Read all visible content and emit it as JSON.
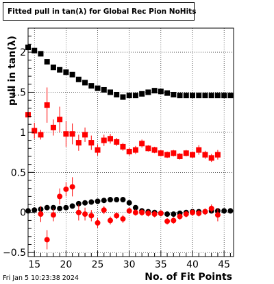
{
  "header": {
    "title": "Fitted pull in tan(λ) for Global Rec Pion NoHits"
  },
  "footer": {
    "timestamp": "Fri Jan  5 10:23:38 2024"
  },
  "chart_data": {
    "type": "scatter",
    "title": "Fitted pull in tan(λ) for Global Rec Pion NoHits",
    "xlabel": "No. of Fit Points",
    "ylabel": "pull in tan(λ)",
    "xlim": [
      14,
      46.5
    ],
    "ylim": [
      -0.55,
      2.3
    ],
    "x_ticks": [
      15,
      20,
      25,
      30,
      35,
      40,
      45
    ],
    "y_ticks": [
      -0.5,
      0,
      0.5,
      1,
      1.5,
      2
    ],
    "y_tick_labels": [
      "−0.5",
      "0",
      "0.5",
      "1",
      "1.5",
      "2"
    ],
    "grid": true,
    "colors": {
      "black": "#000000",
      "red": "#ff0000"
    },
    "series": [
      {
        "color": "#000000",
        "marker": "square",
        "x": [
          14,
          15,
          16,
          17,
          18,
          19,
          20,
          21,
          22,
          23,
          24,
          25,
          26,
          27,
          28,
          29,
          30,
          31,
          32,
          33,
          34,
          35,
          36,
          37,
          38,
          39,
          40,
          41,
          42,
          43,
          44,
          45,
          46
        ],
        "y": [
          2.06,
          2.02,
          1.98,
          1.88,
          1.81,
          1.78,
          1.75,
          1.72,
          1.66,
          1.62,
          1.58,
          1.55,
          1.53,
          1.5,
          1.47,
          1.44,
          1.46,
          1.46,
          1.48,
          1.5,
          1.52,
          1.51,
          1.49,
          1.47,
          1.46,
          1.46,
          1.46,
          1.46,
          1.46,
          1.46,
          1.46,
          1.46,
          1.46
        ]
      },
      {
        "color": "#ff0000",
        "marker": "square",
        "x": [
          14,
          15,
          16,
          17,
          18,
          19,
          20,
          21,
          22,
          23,
          24,
          25,
          26,
          27,
          28,
          29,
          30,
          31,
          32,
          33,
          34,
          35,
          36,
          37,
          38,
          39,
          40,
          41,
          42,
          43,
          44
        ],
        "y": [
          1.22,
          1.02,
          0.97,
          1.34,
          1.06,
          1.16,
          0.98,
          0.98,
          0.87,
          0.97,
          0.87,
          0.78,
          0.9,
          0.92,
          0.88,
          0.82,
          0.76,
          0.78,
          0.86,
          0.8,
          0.78,
          0.74,
          0.72,
          0.74,
          0.7,
          0.74,
          0.72,
          0.78,
          0.72,
          0.68,
          0.72
        ],
        "err": [
          1.1,
          0.1,
          0.06,
          0.22,
          0.1,
          0.16,
          0.16,
          0.13,
          0.1,
          0.09,
          0.09,
          0.07,
          0.07,
          0.06,
          0.05,
          0.05,
          0.05,
          0.05,
          0.05,
          0.04,
          0.04,
          0.04,
          0.04,
          0.04,
          0.04,
          0.04,
          0.04,
          0.06,
          0.05,
          0.05,
          0.06
        ]
      },
      {
        "color": "#000000",
        "marker": "circle",
        "x": [
          14,
          15,
          16,
          17,
          18,
          19,
          20,
          21,
          22,
          23,
          24,
          25,
          26,
          27,
          28,
          29,
          30,
          31,
          32,
          33,
          34,
          35,
          36,
          37,
          38,
          39,
          40,
          41,
          42,
          43,
          44,
          45,
          46
        ],
        "y": [
          0.02,
          0.03,
          0.04,
          0.06,
          0.06,
          0.05,
          0.06,
          0.08,
          0.11,
          0.12,
          0.13,
          0.14,
          0.15,
          0.16,
          0.16,
          0.16,
          0.12,
          0.06,
          0.02,
          0.01,
          0.0,
          -0.01,
          -0.02,
          -0.02,
          -0.01,
          0.0,
          0.01,
          0.01,
          0.01,
          0.02,
          0.02,
          0.02,
          0.02
        ]
      },
      {
        "color": "#ff0000",
        "marker": "circle",
        "x": [
          16,
          17,
          18,
          19,
          20,
          21,
          22,
          23,
          24,
          25,
          26,
          27,
          28,
          29,
          30,
          31,
          32,
          33,
          34,
          35,
          36,
          37,
          38,
          39,
          40,
          41,
          42,
          43,
          44
        ],
        "y": [
          -0.02,
          -0.34,
          -0.03,
          0.2,
          0.29,
          0.32,
          0.0,
          -0.02,
          -0.04,
          -0.13,
          0.03,
          -0.1,
          -0.04,
          -0.08,
          0.02,
          0.0,
          0.0,
          -0.01,
          -0.02,
          -0.01,
          -0.11,
          -0.1,
          -0.05,
          -0.02,
          0.0,
          -0.01,
          0.01,
          0.05,
          -0.03
        ],
        "err": [
          0.1,
          0.12,
          0.08,
          0.1,
          0.09,
          0.12,
          0.1,
          0.08,
          0.07,
          0.06,
          0.05,
          0.05,
          0.04,
          0.05,
          0.04,
          0.04,
          0.04,
          0.04,
          0.04,
          0.04,
          0.04,
          0.04,
          0.04,
          0.04,
          0.04,
          0.04,
          0.04,
          0.05,
          0.08
        ]
      }
    ]
  }
}
